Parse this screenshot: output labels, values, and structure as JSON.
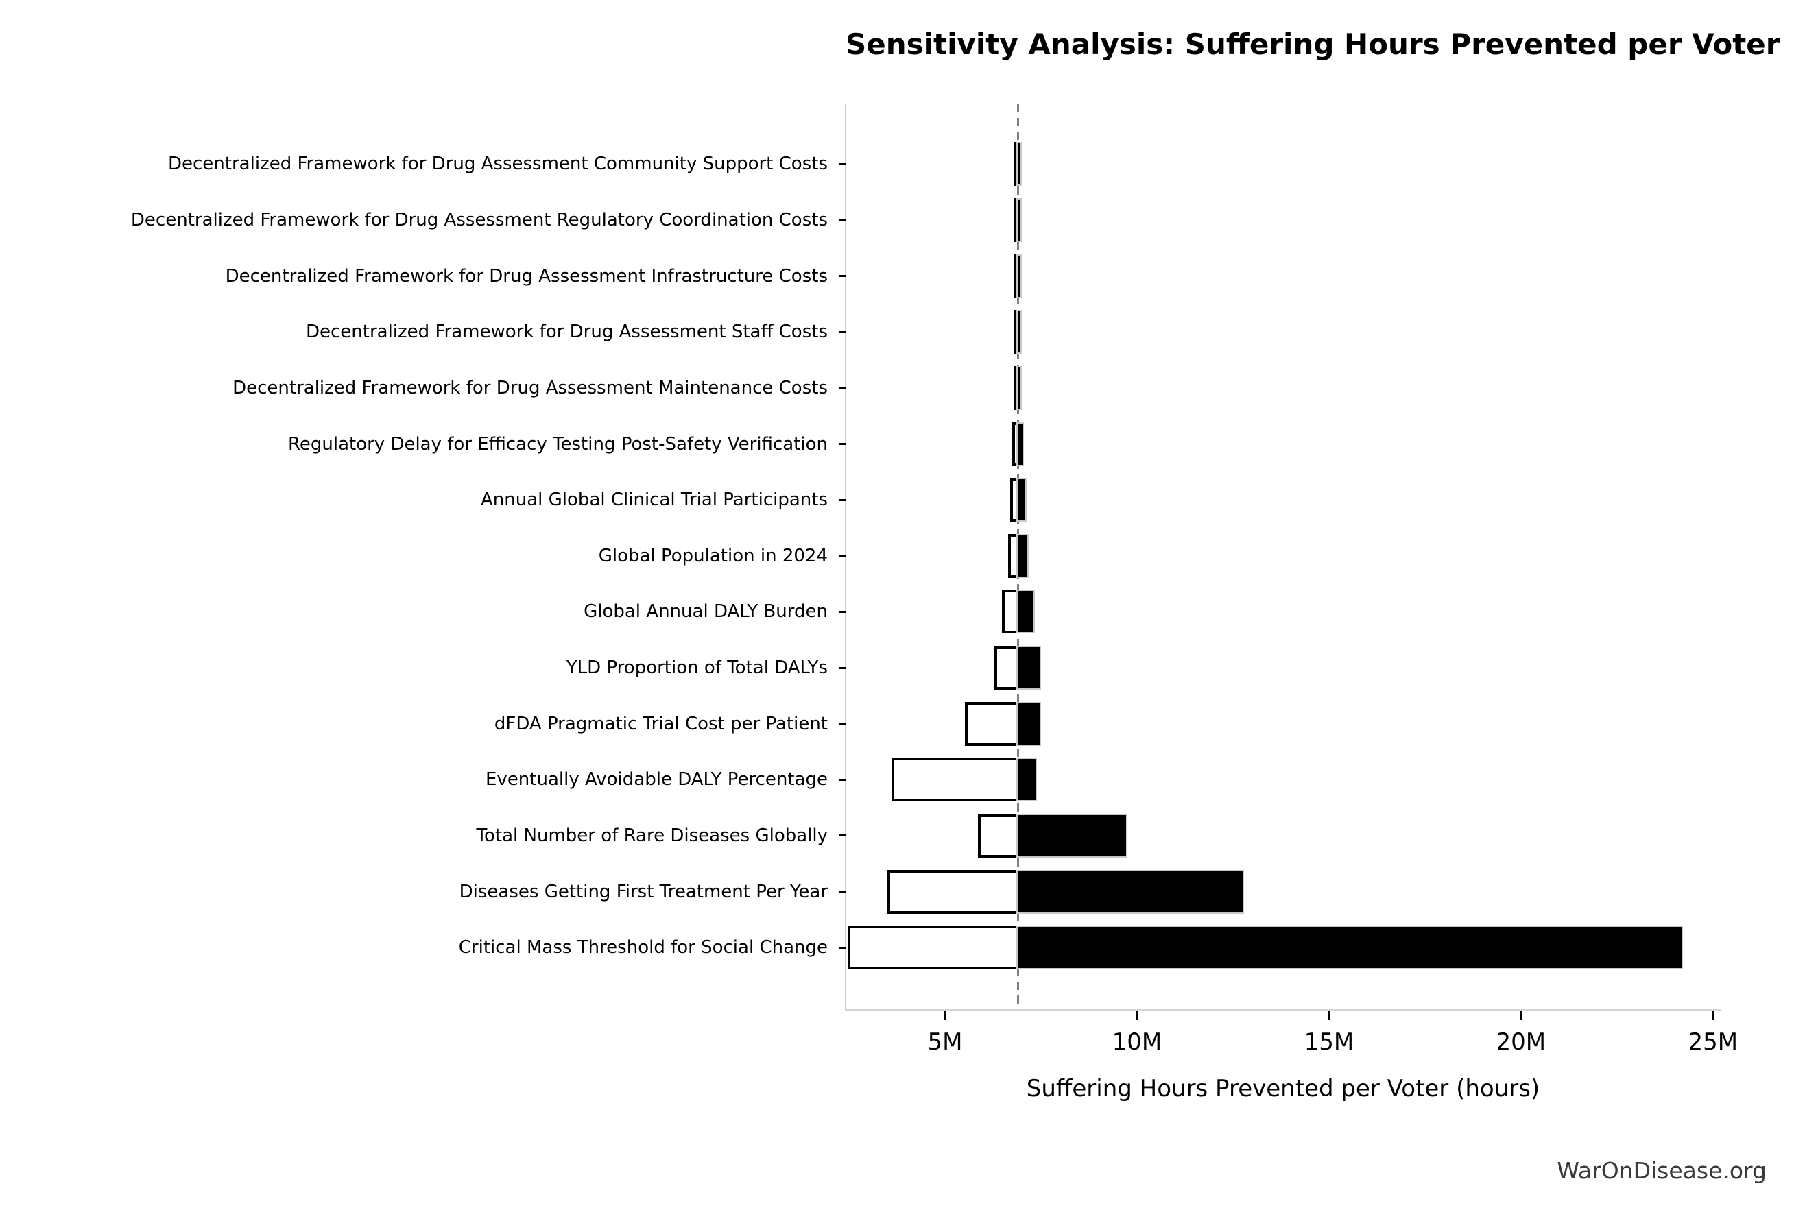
{
  "title": "Sensitivity Analysis: Suffering Hours Prevented per Voter",
  "watermark": "WarOnDisease.org",
  "chart_data": {
    "type": "bar",
    "subtype": "tornado-horizontal",
    "title": "Sensitivity Analysis: Suffering Hours Prevented per Voter",
    "xlabel": "Suffering Hours Prevented per Voter (hours)",
    "ylabel": "",
    "unit": "hours (millions)",
    "xlim": [
      2.41,
      25.2
    ],
    "baseline_value": 6.9,
    "grid": false,
    "legend": "none",
    "x_tick_values": [
      5,
      10,
      15,
      20,
      25
    ],
    "x_tick_labels": [
      "5M",
      "10M",
      "15M",
      "20M",
      "25M"
    ],
    "categories": [
      "Decentralized Framework for Drug Assessment Community Support Costs",
      "Decentralized Framework for Drug Assessment Regulatory Coordination Costs",
      "Decentralized Framework for Drug Assessment Infrastructure Costs",
      "Decentralized Framework for Drug Assessment Staff Costs",
      "Decentralized Framework for Drug Assessment Maintenance Costs",
      "Regulatory Delay for Efficacy Testing Post-Safety Verification",
      "Annual Global Clinical Trial Participants",
      "Global Population in 2024",
      "Global Annual DALY Burden",
      "YLD Proportion of Total DALYs",
      "dFDA Pragmatic Trial Cost per Patient",
      "Eventually Avoidable DALY Percentage",
      "Total Number of Rare Diseases Globally",
      "Diseases Getting First Treatment Per Year",
      "Critical Mass Threshold for Social Change"
    ],
    "series": [
      {
        "name": "low",
        "fill": "#ffffff",
        "edge": "#000000",
        "values": [
          6.85,
          6.85,
          6.85,
          6.85,
          6.85,
          6.78,
          6.73,
          6.67,
          6.51,
          6.32,
          5.55,
          3.64,
          5.9,
          3.54,
          2.5
        ]
      },
      {
        "name": "high",
        "fill": "#000000",
        "edge": "#c8c8c8",
        "values": [
          6.97,
          6.97,
          6.97,
          6.97,
          6.97,
          7.02,
          7.09,
          7.15,
          7.31,
          7.47,
          7.47,
          7.35,
          9.72,
          12.76,
          24.18
        ]
      }
    ],
    "colors": {
      "baseline_line": "#808080",
      "spine": "#cccccc",
      "tick": "#000000",
      "text": "#000000",
      "watermark_text": "#3a3a3a"
    }
  }
}
